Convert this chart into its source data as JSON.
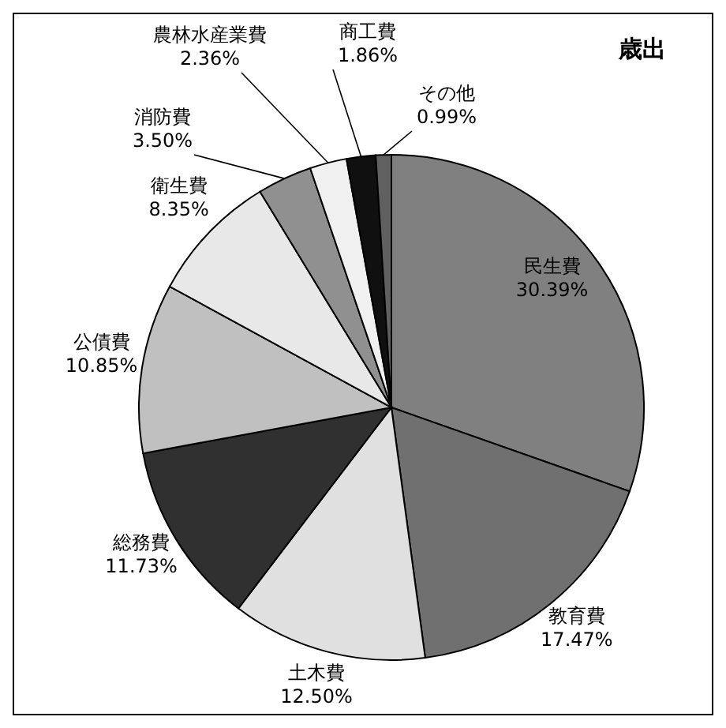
{
  "chart_data": {
    "type": "pie",
    "title": "歳出",
    "categories": [
      "民生費",
      "教育費",
      "土木費",
      "総務費",
      "公債費",
      "衛生費",
      "消防費",
      "農林水産業費",
      "商工費",
      "その他"
    ],
    "values": [
      30.39,
      17.47,
      12.5,
      11.73,
      10.85,
      8.35,
      3.5,
      2.36,
      1.86,
      0.99
    ],
    "value_labels": [
      "30.39%",
      "17.47%",
      "12.50%",
      "11.73%",
      "10.85%",
      "8.35%",
      "3.50%",
      "2.36%",
      "1.86%",
      "0.99%"
    ],
    "colors": [
      "#808080",
      "#707070",
      "#e0e0e0",
      "#303030",
      "#c0c0c0",
      "#e8e8e8",
      "#909090",
      "#f0f0f0",
      "#101010",
      "#606060"
    ]
  }
}
